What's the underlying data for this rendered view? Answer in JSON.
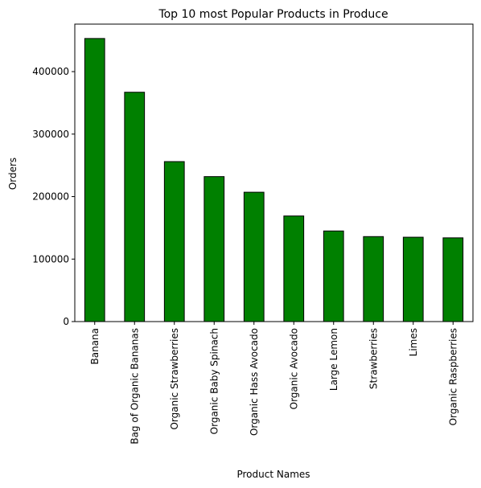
{
  "chart_data": {
    "type": "bar",
    "title": "Top 10 most Popular Products in Produce",
    "xlabel": "Product Names",
    "ylabel": "Orders",
    "categories": [
      "Banana",
      "Bag of Organic Bananas",
      "Organic Strawberries",
      "Organic Baby Spinach",
      "Organic Hass Avocado",
      "Organic Avocado",
      "Large Lemon",
      "Strawberries",
      "Limes",
      "Organic Raspberries"
    ],
    "values": [
      453000,
      367000,
      256000,
      232000,
      207000,
      169000,
      145000,
      136000,
      135000,
      134000
    ],
    "ylim": [
      0,
      476000
    ],
    "yticks": [
      0,
      100000,
      200000,
      300000,
      400000
    ],
    "ytick_labels": [
      "0",
      "100000",
      "200000",
      "300000",
      "400000"
    ],
    "bar_color": "#008000",
    "edge_color": "#000000",
    "grid": false,
    "legend": "none"
  }
}
